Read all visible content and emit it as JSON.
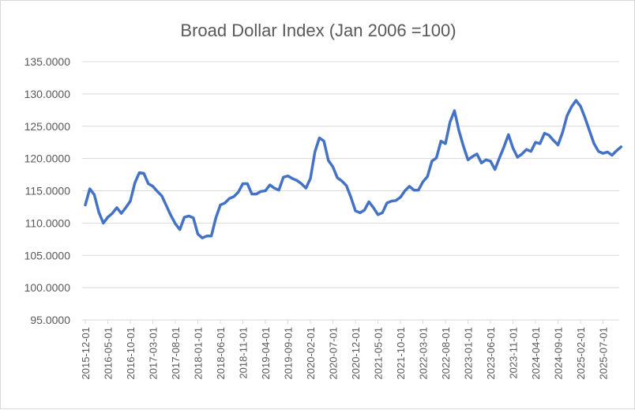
{
  "chart_data": {
    "type": "line",
    "title": "Broad Dollar Index (Jan 2006 =100)",
    "xlabel": "",
    "ylabel": "",
    "ylim": [
      95,
      135
    ],
    "y_ticks": [
      "95.0000",
      "100.0000",
      "105.0000",
      "110.0000",
      "115.0000",
      "120.0000",
      "125.0000",
      "130.0000",
      "135.0000"
    ],
    "grid": true,
    "legend": "none",
    "start_month": "2015-12",
    "x_label_every": 5,
    "series": [
      {
        "name": "Broad Dollar Index",
        "color": "#4472C4",
        "values": [
          112.8,
          115.3,
          114.4,
          111.7,
          110.0,
          110.9,
          111.5,
          112.4,
          111.5,
          112.4,
          113.4,
          116.2,
          117.8,
          117.7,
          116.1,
          115.7,
          114.9,
          114.2,
          112.7,
          111.2,
          109.9,
          109.0,
          110.9,
          111.1,
          110.8,
          108.3,
          107.7,
          108.0,
          108.0,
          110.8,
          112.8,
          113.1,
          113.8,
          114.1,
          114.8,
          116.1,
          116.1,
          114.5,
          114.5,
          114.9,
          115.0,
          115.9,
          115.4,
          115.1,
          117.1,
          117.3,
          116.9,
          116.6,
          116.1,
          115.4,
          116.9,
          121.0,
          123.2,
          122.7,
          119.7,
          118.7,
          117.0,
          116.5,
          115.8,
          114.0,
          111.9,
          111.6,
          112.0,
          113.3,
          112.4,
          111.3,
          111.6,
          113.1,
          113.4,
          113.5,
          114.0,
          115.0,
          115.7,
          115.1,
          115.1,
          116.4,
          117.2,
          119.6,
          120.1,
          122.7,
          122.3,
          125.6,
          127.4,
          124.3,
          121.9,
          119.8,
          120.3,
          120.7,
          119.3,
          119.8,
          119.6,
          118.3,
          120.1,
          121.8,
          123.7,
          121.6,
          120.2,
          120.7,
          121.4,
          121.1,
          122.5,
          122.3,
          123.9,
          123.6,
          122.8,
          122.1,
          124.0,
          126.6,
          128.0,
          129.0,
          128.1,
          126.3,
          124.3,
          122.3,
          121.1,
          120.8,
          121.0,
          120.5,
          121.2,
          121.8
        ]
      }
    ],
    "x_tick_labels": [
      "2015-12-01",
      "2016-05-01",
      "2016-10-01",
      "2017-03-01",
      "2017-08-01",
      "2018-01-01",
      "2018-06-01",
      "2018-11-01",
      "2019-04-01",
      "2019-09-01",
      "2020-02-01",
      "2020-07-01",
      "2020-12-01",
      "2021-05-01",
      "2021-10-01",
      "2022-03-01",
      "2022-08-01",
      "2023-01-01",
      "2023-06-01",
      "2023-11-01",
      "2024-04-01",
      "2024-09-01",
      "2025-02-01",
      "2025-07-01"
    ]
  }
}
